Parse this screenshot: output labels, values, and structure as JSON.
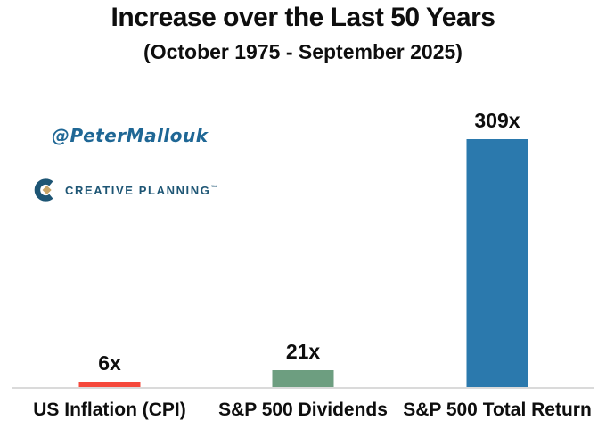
{
  "title": "Increase over the Last 50 Years",
  "subtitle": "(October 1975 - September 2025)",
  "watermark": {
    "handle": "@PeterMallouk",
    "handle_color": "#1f6795",
    "brand": "CREATIVE PLANNING",
    "brand_mark": "™",
    "brand_color": "#1d5574",
    "logo_gold": "#c7a568"
  },
  "chart_data": {
    "type": "bar",
    "title": "Increase over the Last 50 Years",
    "subtitle": "(October 1975 - September 2025)",
    "categories": [
      "US Inflation (CPI)",
      "S&P 500 Dividends",
      "S&P 500 Total Return"
    ],
    "values": [
      6,
      21,
      309
    ],
    "value_labels": [
      "6x",
      "21x",
      "309x"
    ],
    "bar_colors": [
      "#f5483b",
      "#6d9e80",
      "#2b79ad"
    ],
    "xlabel": "",
    "ylabel": "",
    "ylim": [
      0,
      309
    ],
    "grid": false,
    "legend": false,
    "baseline_color": "#dadada"
  }
}
